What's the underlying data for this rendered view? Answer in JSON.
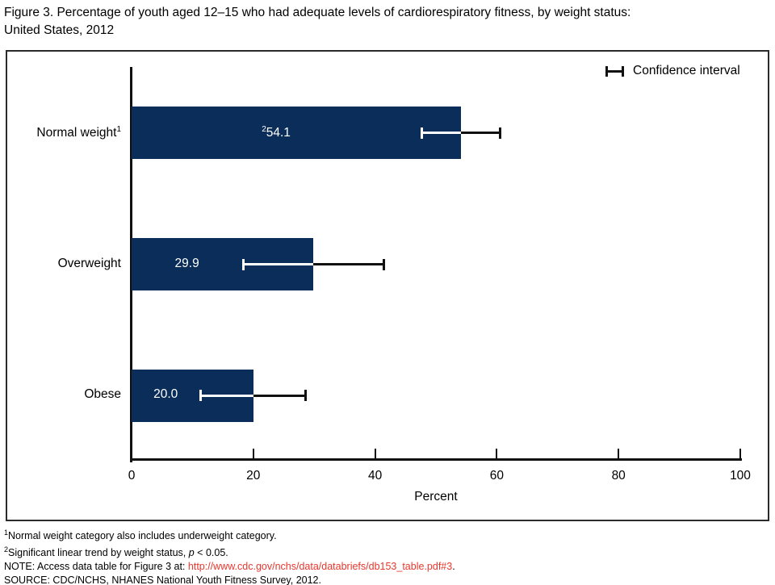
{
  "title": {
    "line1": "Figure 3. Percentage of youth aged 12–15 who had adequate levels of cardiorespiratory fitness, by weight status:",
    "line2": "United States, 2012"
  },
  "chart_data": {
    "type": "bar",
    "orientation": "horizontal",
    "title": "Figure 3. Percentage of youth aged 12–15 who had adequate levels of cardiorespiratory fitness, by weight status: United States, 2012",
    "xlabel": "Percent",
    "xlim": [
      0,
      100
    ],
    "xticks": [
      0,
      20,
      40,
      60,
      80,
      100
    ],
    "grid": false,
    "legend_position": "top-right",
    "legend_label": "Confidence interval",
    "bar_color": "#0a2d5a",
    "categories": [
      "Normal weight",
      "Overweight",
      "Obese"
    ],
    "values": [
      54.1,
      29.9,
      20.0
    ],
    "bars": [
      {
        "category": "Normal weight",
        "category_sup": "1",
        "value": 54.1,
        "value_label": "54.1",
        "value_label_sup": "2",
        "ci": [
          47.5,
          60.7
        ]
      },
      {
        "category": "Overweight",
        "category_sup": "",
        "value": 29.9,
        "value_label": "29.9",
        "value_label_sup": "",
        "ci": [
          18.2,
          41.6
        ]
      },
      {
        "category": "Obese",
        "category_sup": "",
        "value": 20.0,
        "value_label": "20.0",
        "value_label_sup": "",
        "ci": [
          11.2,
          28.8
        ]
      }
    ]
  },
  "footnotes": {
    "fn1_sup": "1",
    "fn1": "Normal weight category also includes underweight category.",
    "fn2_sup": "2",
    "fn2_pre": "Significant linear trend by weight status, ",
    "fn2_italic": "p",
    "fn2_post": " < 0.05.",
    "note_pre": "NOTE: Access data table for Figure 3 at: ",
    "note_link": "http://www.cdc.gov/nchs/data/databriefs/db153_table.pdf#3",
    "note_post": ".",
    "source": "SOURCE: CDC/NCHS, NHANES National Youth Fitness Survey, 2012."
  }
}
